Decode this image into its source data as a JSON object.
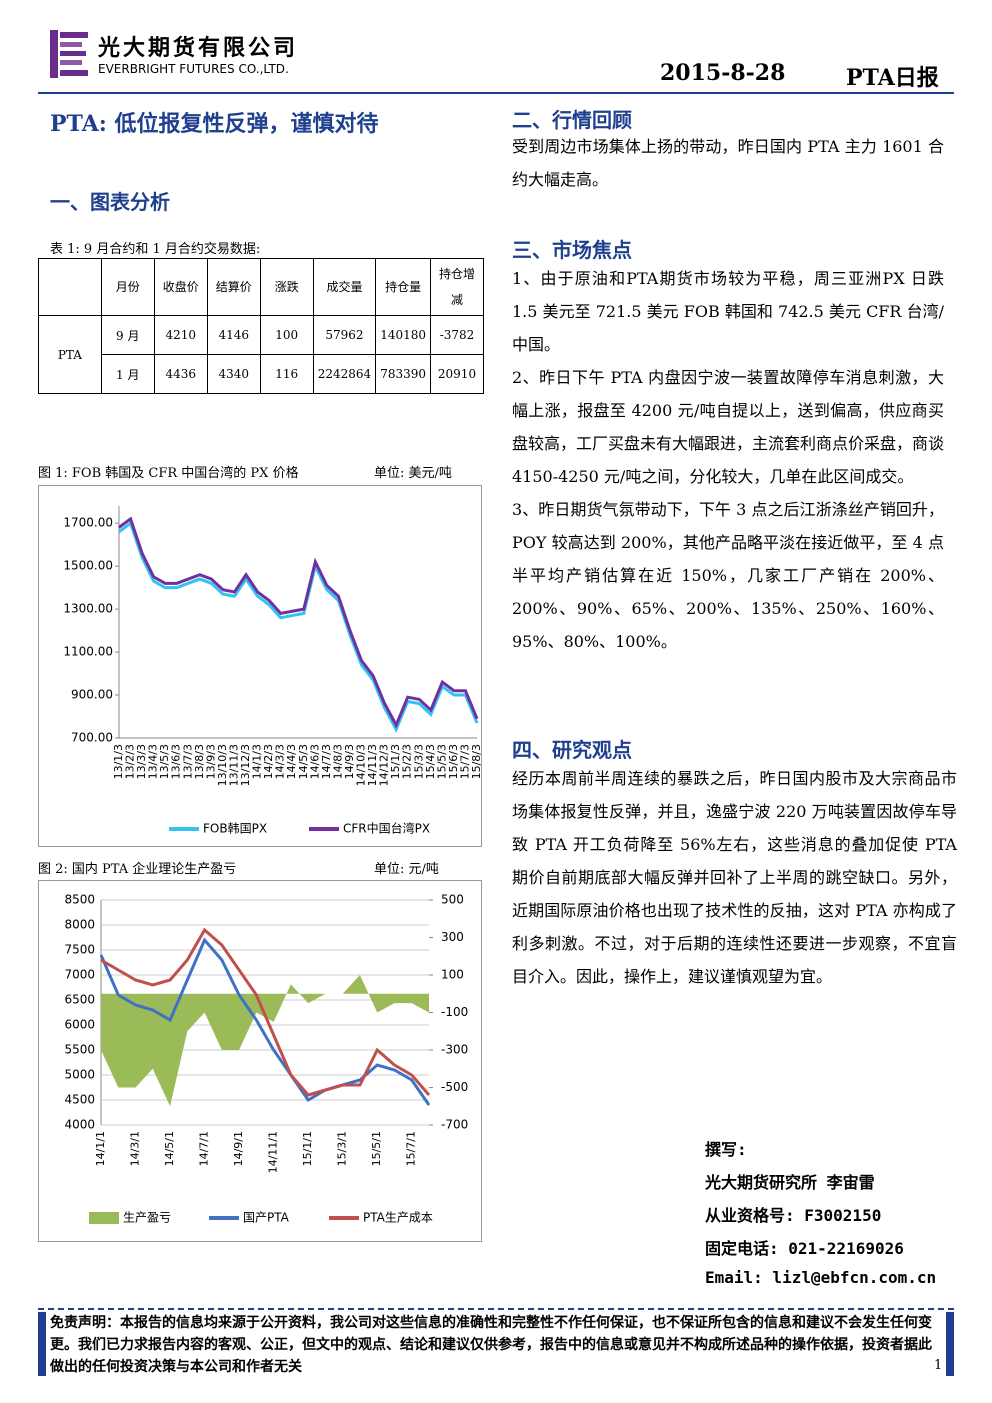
{
  "header": {
    "company_cn": "光大期货有限公司",
    "company_en": "EVERBRIGHT FUTURES CO.,LTD.",
    "date": "2015-8-28",
    "report": "PTA日报"
  },
  "title": "PTA: 低位报复性反弹，谨慎对待",
  "section1": "一、图表分析",
  "table": {
    "caption": "表 1: 9 月合约和 1 月合约交易数据:",
    "columns": [
      "月份",
      "收盘价",
      "结算价",
      "涨跌",
      "成交量",
      "持仓量",
      "持仓增减"
    ],
    "product": "PTA",
    "rows": [
      [
        "9 月",
        4210,
        4146,
        100,
        57962,
        140180,
        -3782
      ],
      [
        "1 月",
        4436,
        4340,
        116,
        2242864,
        783390,
        20910
      ]
    ]
  },
  "chart_data": [
    {
      "type": "line",
      "title": "图 1: FOB 韩国及 CFR 中国台湾的 PX 价格",
      "unit": "单位: 美元/吨",
      "grid": false,
      "categories": [
        "13/1/3",
        "13/2/3",
        "13/3/3",
        "13/4/3",
        "13/5/3",
        "13/6/3",
        "13/7/3",
        "13/8/3",
        "13/9/3",
        "13/10/3",
        "13/11/3",
        "13/12/3",
        "14/1/3",
        "14/2/3",
        "14/3/3",
        "14/4/3",
        "14/5/3",
        "14/6/3",
        "14/7/3",
        "14/8/3",
        "14/9/3",
        "14/10/3",
        "14/11/3",
        "14/12/3",
        "15/1/3",
        "15/2/3",
        "15/3/3",
        "15/4/3",
        "15/5/3",
        "15/6/3",
        "15/7/3",
        "15/8/3"
      ],
      "ylim": [
        700,
        1780
      ],
      "yticks": [
        {
          "value": 700,
          "label": "700.00"
        },
        {
          "value": 900,
          "label": "900.00"
        },
        {
          "value": 1100,
          "label": "1100.00"
        },
        {
          "value": 1300,
          "label": "1300.00"
        },
        {
          "value": 1500,
          "label": "1500.00"
        },
        {
          "value": 1700,
          "label": "1700.00"
        }
      ],
      "series": [
        {
          "name": "FOB韩国PX",
          "color": "#33c3f0",
          "values": [
            1660,
            1700,
            1540,
            1430,
            1400,
            1400,
            1420,
            1440,
            1420,
            1370,
            1360,
            1440,
            1360,
            1320,
            1260,
            1270,
            1280,
            1500,
            1390,
            1340,
            1180,
            1040,
            970,
            840,
            740,
            870,
            860,
            810,
            940,
            900,
            900,
            770
          ]
        },
        {
          "name": "CFR中国台湾PX",
          "color": "#7030a0",
          "values": [
            1680,
            1720,
            1560,
            1450,
            1420,
            1420,
            1440,
            1460,
            1440,
            1390,
            1380,
            1460,
            1380,
            1340,
            1280,
            1290,
            1300,
            1520,
            1410,
            1360,
            1200,
            1060,
            990,
            860,
            760,
            890,
            880,
            830,
            960,
            920,
            920,
            790
          ]
        }
      ]
    },
    {
      "type": "line",
      "title": "图 2:  国内 PTA 企业理论生产盈亏",
      "unit": "单位: 元/吨",
      "grid": true,
      "categories": [
        "14/1/1",
        null,
        "14/3/1",
        null,
        "14/5/1",
        null,
        "14/7/1",
        null,
        "14/9/1",
        null,
        "14/11/1",
        null,
        "15/1/1",
        null,
        "15/3/1",
        null,
        "15/5/1",
        null,
        "15/7/1",
        null
      ],
      "ylim": [
        4000,
        8500
      ],
      "yticks": [
        4000,
        4500,
        5000,
        5500,
        6000,
        6500,
        7000,
        7500,
        8000,
        8500
      ],
      "y2lim": [
        -700,
        500
      ],
      "y2ticks": [
        -700,
        -500,
        -300,
        -100,
        100,
        300,
        500
      ],
      "series": [
        {
          "name": "生产盈亏",
          "type": "area",
          "axis": "y2",
          "color": "#9bbb59",
          "values": [
            -300,
            -500,
            -500,
            -400,
            -600,
            -200,
            -100,
            -300,
            -300,
            -100,
            -150,
            50,
            -50,
            0,
            0,
            100,
            -100,
            -50,
            -50,
            -100
          ]
        },
        {
          "name": "国产PTA",
          "color": "#3f72c4",
          "values": [
            7400,
            6600,
            6400,
            6300,
            6100,
            6900,
            7700,
            7300,
            6600,
            6100,
            5500,
            5000,
            4500,
            4700,
            4800,
            4900,
            5200,
            5100,
            4900,
            4400
          ]
        },
        {
          "name": "PTA生产成本",
          "color": "#c0504d",
          "values": [
            7300,
            7100,
            6900,
            6800,
            6900,
            7300,
            7900,
            7600,
            7100,
            6600,
            5800,
            5000,
            4600,
            4700,
            4800,
            4800,
            5500,
            5200,
            5000,
            4600
          ]
        }
      ]
    }
  ],
  "section2": {
    "heading": "二、行情回顾",
    "text": "受到周边市场集体上扬的带动，昨日国内 PTA 主力 1601 合约大幅走高。"
  },
  "section3": {
    "heading": "三、市场焦点",
    "items": [
      "1、由于原油和PTA期货市场较为平稳，周三亚洲PX 日跌 1.5 美元至 721.5 美元 FOB 韩国和 742.5 美元 CFR 台湾/中国。",
      "2、昨日下午 PTA 内盘因宁波一装置故障停车消息刺激，大幅上涨，报盘至 4200 元/吨自提以上，送到偏高，供应商买盘较高，工厂买盘未有大幅跟进，主流套利商点价采盘，商谈 4150-4250 元/吨之间，分化较大，几单在此区间成交。",
      "3、昨日期货气氛带动下，下午 3 点之后江浙涤丝产销回升，POY 较高达到 200%，其他产品略平淡在接近做平，至 4 点半平均产销估算在近 150%，几家工厂产销在 200%、200%、90%、65%、200%、135%、250%、160%、95%、80%、100%。"
    ]
  },
  "section4": {
    "heading": "四、研究观点",
    "text": "经历本周前半周连续的暴跌之后，昨日国内股市及大宗商品市场集体报复性反弹，并且，逸盛宁波 220 万吨装置因故停车导致 PTA 开工负荷降至 56%左右，这些消息的叠加促使 PTA 期价自前期底部大幅反弹并回补了上半周的跳空缺口。另外，近期国际原油价格也出现了技术性的反抽，这对 PTA 亦构成了利多刺激。不过，对于后期的连续性还要进一步观察，不宜盲目介入。因此，操作上，建议谨慎观望为宜。"
  },
  "author": {
    "label": "撰写:",
    "name": "光大期货研究所 李宙雷",
    "license": "从业资格号: F3002150",
    "phone": "固定电话: 021-22169026",
    "email": "Email: lizl@ebfcn.com.cn"
  },
  "disclaimer": "免责声明：本报告的信息均来源于公开资料，我公司对这些信息的准确性和完整性不作任何保证，也不保证所包含的信息和建议不会发生任何变更。我们已力求报告内容的客观、公正，但文中的观点、结论和建议仅供参考，报告中的信息或意见并不构成所述品种的操作依据，投资者据此做出的任何投资决策与本公司和作者无关",
  "page": "1"
}
